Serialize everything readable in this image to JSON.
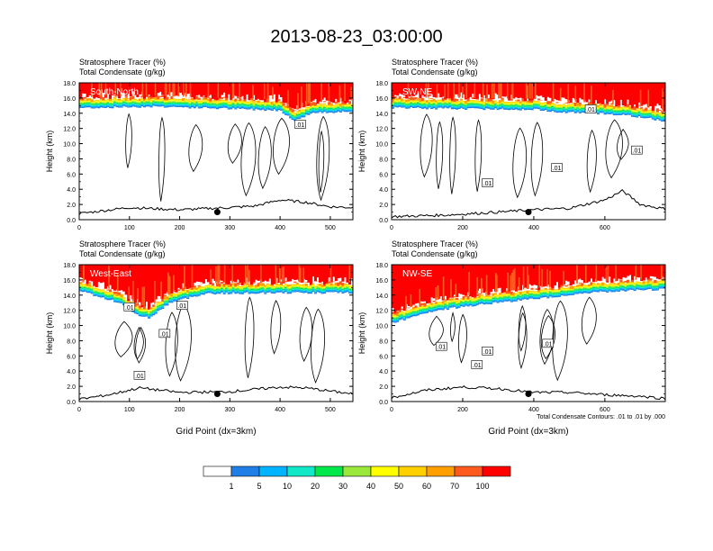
{
  "figure": {
    "title": "2013-08-23_03:00:00",
    "footnote": "Total Condensate Contours: .01 to .01 by .000"
  },
  "chart_data": [
    {
      "type": "heatmap",
      "panel_label": "South-North",
      "subtitle_line1": "Stratosphere Tracer   (%)",
      "subtitle_line2": "Total Condensate   (g/kg)",
      "ylabel": "Height (km)",
      "xlabel": "",
      "xlim": [
        0,
        545
      ],
      "ylim": [
        0,
        18
      ],
      "xticks": [
        0,
        100,
        200,
        300,
        400,
        500
      ],
      "yticks": [
        "0.0",
        "2.0",
        "4.0",
        "6.0",
        "8.0",
        "10.0",
        "12.0",
        "14.0",
        "16.0",
        "18.0"
      ],
      "tracer_base_km": [
        [
          0,
          14.7
        ],
        [
          150,
          14.9
        ],
        [
          300,
          14.6
        ],
        [
          400,
          14.4
        ],
        [
          430,
          13.0
        ],
        [
          460,
          14.0
        ],
        [
          545,
          14.3
        ]
      ],
      "terrain_km": [
        [
          0,
          0.8
        ],
        [
          100,
          1.6
        ],
        [
          200,
          1.3
        ],
        [
          300,
          1.6
        ],
        [
          350,
          1.8
        ],
        [
          400,
          2.6
        ],
        [
          450,
          2.3
        ],
        [
          500,
          1.7
        ],
        [
          545,
          1.6
        ]
      ],
      "contour_labels": [
        {
          "text": ".01",
          "x": 440,
          "y": 12.5
        }
      ],
      "marker_point": {
        "x": 275,
        "y": 1.0
      }
    },
    {
      "type": "heatmap",
      "panel_label": "SW-NE",
      "subtitle_line1": "Stratosphere Tracer   (%)",
      "subtitle_line2": "Total Condensate   (g/kg)",
      "ylabel": "Height (km)",
      "xlabel": "",
      "xlim": [
        0,
        770
      ],
      "ylim": [
        0,
        18
      ],
      "xticks": [
        0,
        200,
        400,
        600
      ],
      "yticks": [
        "0.0",
        "2.0",
        "4.0",
        "6.0",
        "8.0",
        "10.0",
        "12.0",
        "14.0",
        "16.0",
        "18.0"
      ],
      "tracer_base_km": [
        [
          0,
          14.7
        ],
        [
          200,
          14.6
        ],
        [
          400,
          14.5
        ],
        [
          470,
          14.2
        ],
        [
          560,
          14.0
        ],
        [
          650,
          13.8
        ],
        [
          770,
          13.0
        ]
      ],
      "terrain_km": [
        [
          0,
          0.4
        ],
        [
          150,
          0.6
        ],
        [
          300,
          1.0
        ],
        [
          400,
          1.3
        ],
        [
          500,
          1.5
        ],
        [
          600,
          2.6
        ],
        [
          650,
          3.8
        ],
        [
          700,
          2.0
        ],
        [
          770,
          1.4
        ]
      ],
      "contour_labels": [
        {
          "text": ".01",
          "x": 560,
          "y": 14.5
        },
        {
          "text": ".01",
          "x": 465,
          "y": 6.8
        },
        {
          "text": ".01",
          "x": 270,
          "y": 4.8
        },
        {
          "text": ".01",
          "x": 690,
          "y": 9.1
        }
      ],
      "marker_point": {
        "x": 385,
        "y": 1.0
      }
    },
    {
      "type": "heatmap",
      "panel_label": "West-East",
      "subtitle_line1": "Stratosphere Tracer   (%)",
      "subtitle_line2": "Total Condensate   (g/kg)",
      "ylabel": "Height (km)",
      "xlabel": "Grid Point (dx=3km)",
      "xlim": [
        0,
        545
      ],
      "ylim": [
        0,
        18
      ],
      "xticks": [
        0,
        100,
        200,
        300,
        400,
        500
      ],
      "yticks": [
        "0.0",
        "2.0",
        "4.0",
        "6.0",
        "8.0",
        "10.0",
        "12.0",
        "14.0",
        "16.0",
        "18.0"
      ],
      "tracer_base_km": [
        [
          0,
          14.6
        ],
        [
          80,
          13.0
        ],
        [
          110,
          11.5
        ],
        [
          140,
          11.0
        ],
        [
          180,
          13.0
        ],
        [
          250,
          14.2
        ],
        [
          400,
          14.3
        ],
        [
          545,
          14.3
        ]
      ],
      "terrain_km": [
        [
          0,
          0.3
        ],
        [
          60,
          0.9
        ],
        [
          120,
          1.8
        ],
        [
          200,
          1.2
        ],
        [
          300,
          1.3
        ],
        [
          400,
          1.9
        ],
        [
          450,
          1.8
        ],
        [
          545,
          1.0
        ]
      ],
      "contour_labels": [
        {
          "text": ".01",
          "x": 100,
          "y": 12.4
        },
        {
          "text": ".01",
          "x": 205,
          "y": 12.6
        },
        {
          "text": ".01",
          "x": 170,
          "y": 8.9
        },
        {
          "text": ".01",
          "x": 120,
          "y": 3.4
        }
      ],
      "marker_point": {
        "x": 275,
        "y": 1.0
      }
    },
    {
      "type": "heatmap",
      "panel_label": "NW-SE",
      "subtitle_line1": "Stratosphere Tracer   (%)",
      "subtitle_line2": "Total Condensate   (g/kg)",
      "ylabel": "Height (km)",
      "xlabel": "Grid Point (dx=3km)",
      "xlim": [
        0,
        770
      ],
      "ylim": [
        0,
        18
      ],
      "xticks": [
        0,
        200,
        400,
        600
      ],
      "yticks": [
        "0.0",
        "2.0",
        "4.0",
        "6.0",
        "8.0",
        "10.0",
        "12.0",
        "14.0",
        "16.0",
        "18.0"
      ],
      "tracer_base_km": [
        [
          0,
          10.3
        ],
        [
          50,
          11.0
        ],
        [
          130,
          12.0
        ],
        [
          250,
          12.8
        ],
        [
          400,
          13.5
        ],
        [
          550,
          14.3
        ],
        [
          770,
          14.8
        ]
      ],
      "terrain_km": [
        [
          0,
          0.5
        ],
        [
          100,
          1.5
        ],
        [
          200,
          1.9
        ],
        [
          300,
          1.7
        ],
        [
          400,
          1.2
        ],
        [
          500,
          1.2
        ],
        [
          600,
          0.9
        ],
        [
          700,
          0.7
        ],
        [
          770,
          0.4
        ]
      ],
      "contour_labels": [
        {
          "text": ".01",
          "x": 140,
          "y": 7.2
        },
        {
          "text": ".01",
          "x": 240,
          "y": 4.8
        },
        {
          "text": ".01",
          "x": 270,
          "y": 6.6
        },
        {
          "text": ".01",
          "x": 440,
          "y": 7.6
        }
      ],
      "marker_point": {
        "x": 385,
        "y": 1.0
      }
    }
  ],
  "colorbar": {
    "colors": [
      "#ffffff",
      "#1f7fe6",
      "#00b4ff",
      "#10e8c8",
      "#00e84a",
      "#9ae83a",
      "#ffff00",
      "#ffd000",
      "#ffa000",
      "#ff5a1e",
      "#ff0000"
    ],
    "labels": [
      "1",
      "5",
      "10",
      "20",
      "30",
      "40",
      "50",
      "60",
      "70",
      "100"
    ]
  }
}
